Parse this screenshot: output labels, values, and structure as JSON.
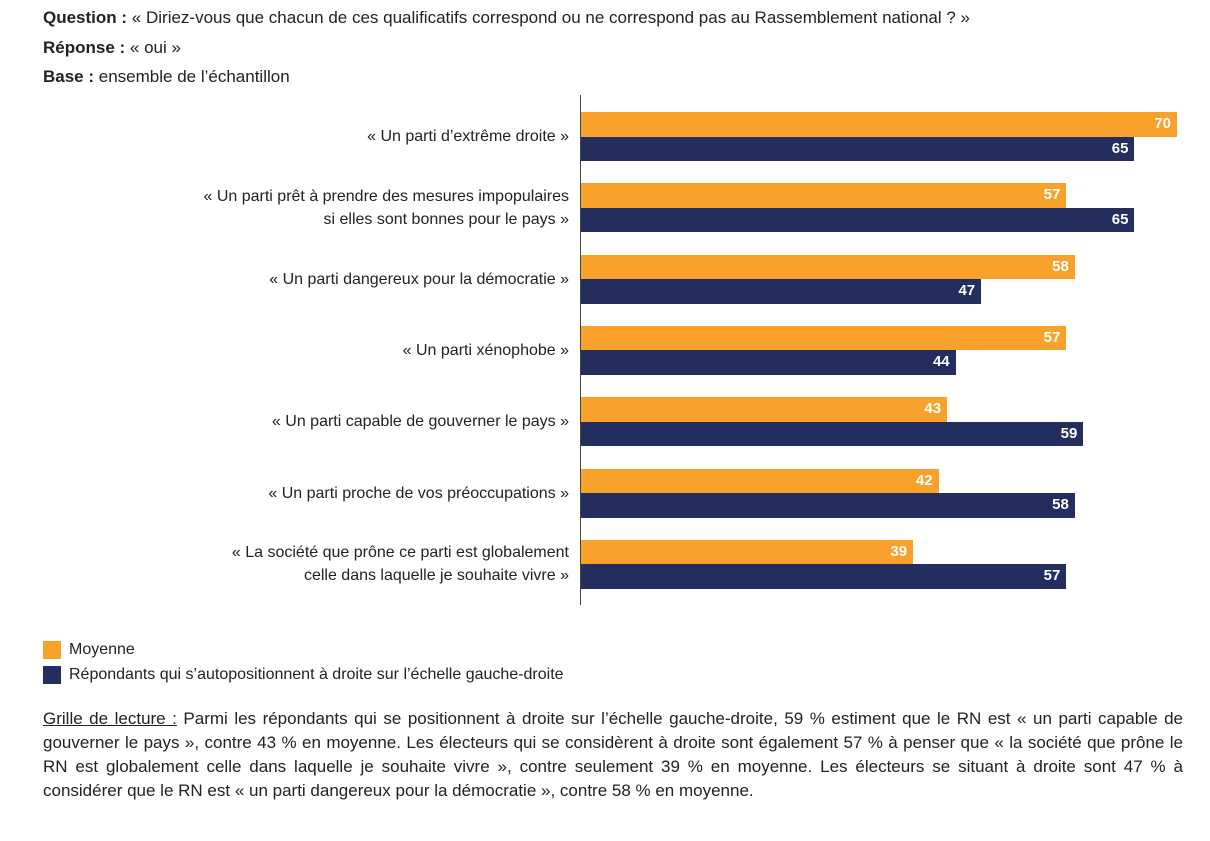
{
  "header": {
    "question_label": "Question :",
    "question_text": "« Diriez-vous que chacun de ces qualificatifs correspond ou ne correspond pas au Rassemblement national ? »",
    "answer_label": "Réponse :",
    "answer_text": "« oui »",
    "base_label": "Base :",
    "base_text": "ensemble de l’échantillon"
  },
  "chart_data": {
    "type": "bar",
    "orientation": "horizontal",
    "categories": [
      "« Un parti d’extrême droite »",
      "« Un parti prêt à prendre des mesures impopulaires\nsi elles sont bonnes pour le pays »",
      "« Un parti dangereux pour la démocratie »",
      "« Un parti xénophobe »",
      "« Un parti capable de gouverner le pays »",
      "« Un parti proche de vos préoccupations »",
      "« La société que prône ce parti est globalement\ncelle dans laquelle je souhaite vivre »"
    ],
    "series": [
      {
        "name": "Moyenne",
        "color": "#F9A22B",
        "values": [
          70,
          57,
          58,
          57,
          43,
          42,
          39
        ]
      },
      {
        "name": "Répondants qui s’autopositionnent à droite sur l’échelle gauche-droite",
        "color": "#232D5E",
        "values": [
          65,
          65,
          47,
          44,
          59,
          58,
          57
        ]
      }
    ],
    "xlim": [
      0,
      70
    ],
    "grid": false,
    "legend": "bottom-left"
  },
  "reading": {
    "label": "Grille de lecture :",
    "text": " Parmi les répondants qui se positionnent à droite sur l’échelle gauche-droite, 59 % estiment que le RN est « un parti capable de gouverner le pays », contre 43 % en moyenne. Les électeurs qui se considèrent à droite sont également 57 % à penser que « la société que prône le RN est globalement celle dans laquelle je souhaite vivre », contre seulement 39 % en moyenne. Les électeurs se situant à droite sont 47 % à considérer que le RN est « un parti dangereux pour la démocratie », contre 58 % en moyenne."
  }
}
